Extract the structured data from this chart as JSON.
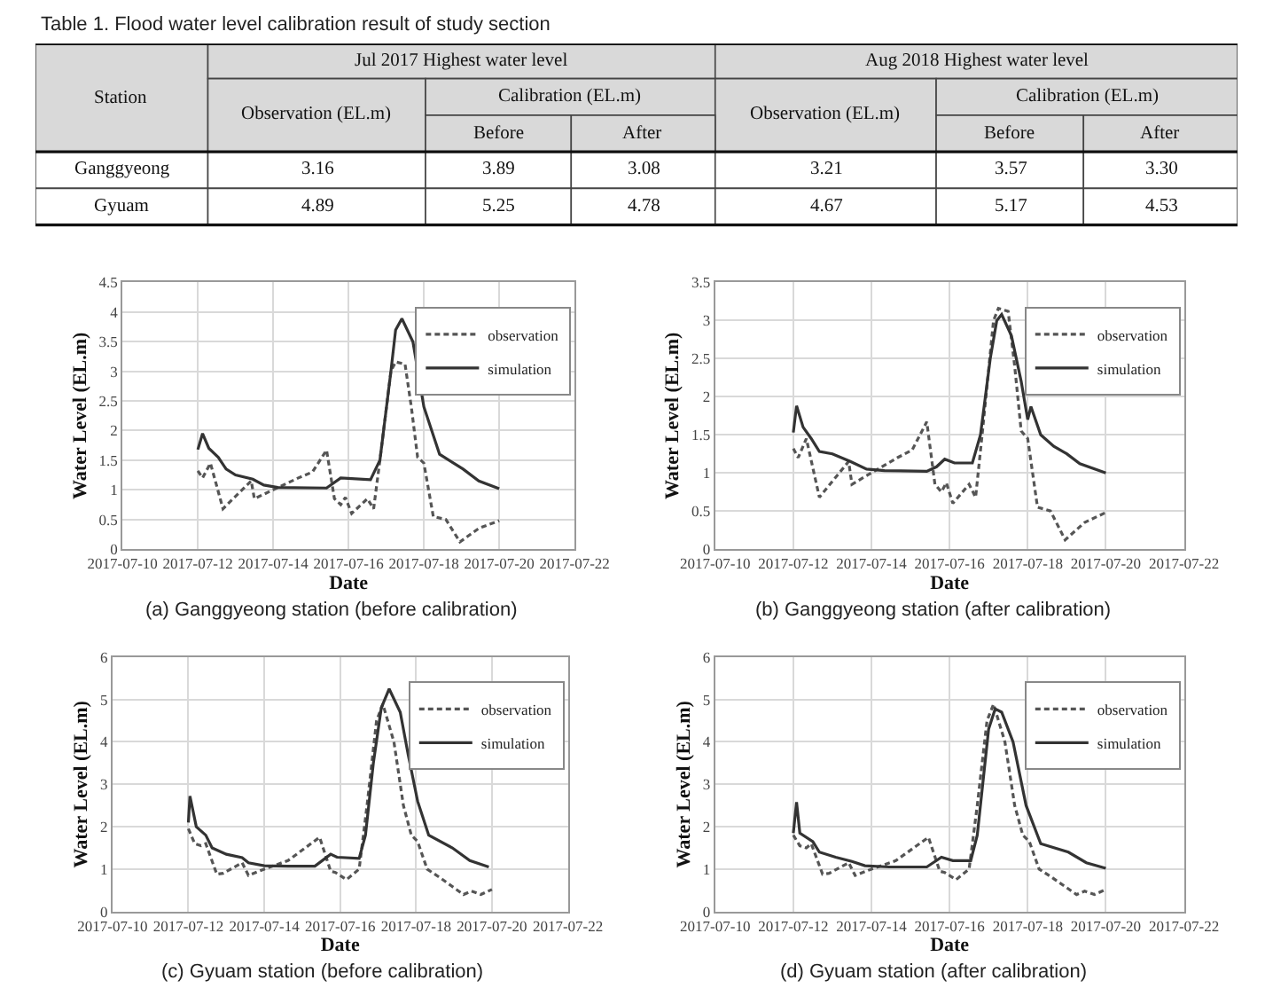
{
  "chart_data": [
    {
      "type": "other",
      "title": "Table 1. Flood water level calibration result of study section",
      "annotations": [
        "Station",
        "Jul 2017 Highest water level",
        "Aug 2018 Highest water level",
        "Observation (EL.m)",
        "Calibration (EL.m)",
        "Observation (EL.m)",
        "Calibration (EL.m)",
        "Before",
        "After",
        "Before",
        "After",
        "Ganggyeong",
        "3.16",
        "3.89",
        "3.08",
        "3.21",
        "3.57",
        "3.30",
        "Gyuam",
        "4.89",
        "5.25",
        "4.78",
        "4.67",
        "5.17",
        "4.53"
      ]
    },
    {
      "type": "line",
      "xlabel": "Date",
      "ylabel": "Water Level (EL.m)",
      "annotations": [
        "(a) Ganggyeong station (before calibration)"
      ],
      "xlim": [
        "2017-07-10",
        "2017-07-22"
      ],
      "xticks": [
        "2017-07-10",
        "2017-07-12",
        "2017-07-14",
        "2017-07-16",
        "2017-07-18",
        "2017-07-20",
        "2017-07-22"
      ],
      "ylim": [
        0,
        4.5
      ],
      "yticks": [
        0,
        0.5,
        1,
        1.5,
        2,
        2.5,
        3,
        3.5,
        4,
        4.5
      ],
      "grid": true,
      "legend": "top right",
      "series": [
        {
          "name": "observation",
          "color": "#555555",
          "line_style": "dashed",
          "x": [
            "2017-07-12T00:00",
            "2017-07-12T03:00",
            "2017-07-12T08:00",
            "2017-07-12T16:00",
            "2017-07-13T10:00",
            "2017-07-13T12:00",
            "2017-07-14T00:00",
            "2017-07-14T16:00",
            "2017-07-15T01:00",
            "2017-07-15T10:00",
            "2017-07-15T15:00",
            "2017-07-15T19:00",
            "2017-07-15T22:00",
            "2017-07-16T02:00",
            "2017-07-16T12:00",
            "2017-07-16T16:00",
            "2017-07-16T20:00",
            "2017-07-17T03:00",
            "2017-07-17T06:00",
            "2017-07-17T12:00",
            "2017-07-17T16:00",
            "2017-07-17T20:00",
            "2017-07-18T00:00",
            "2017-07-18T06:00",
            "2017-07-18T14:00",
            "2017-07-18T23:00",
            "2017-07-19T11:00",
            "2017-07-20T00:00"
          ],
          "values": [
            1.32,
            1.2,
            1.45,
            0.68,
            1.15,
            0.85,
            1.0,
            1.2,
            1.3,
            1.67,
            0.85,
            0.75,
            0.87,
            0.6,
            0.85,
            0.68,
            1.5,
            3.0,
            3.16,
            3.12,
            2.4,
            1.55,
            1.45,
            0.55,
            0.5,
            0.12,
            0.35,
            0.48
          ]
        },
        {
          "name": "simulation",
          "color": "#333333",
          "line_style": "solid",
          "x": [
            "2017-07-12T00:00",
            "2017-07-12T03:00",
            "2017-07-12T07:00",
            "2017-07-12T13:00",
            "2017-07-12T18:00",
            "2017-07-13T00:00",
            "2017-07-13T11:00",
            "2017-07-13T18:00",
            "2017-07-14T03:00",
            "2017-07-15T10:00",
            "2017-07-15T19:00",
            "2017-07-16T14:00",
            "2017-07-16T20:00",
            "2017-07-17T03:00",
            "2017-07-17T06:00",
            "2017-07-17T10:00",
            "2017-07-17T17:00",
            "2017-07-18T00:00",
            "2017-07-18T10:00",
            "2017-07-19T01:00",
            "2017-07-19T11:00",
            "2017-07-20T00:00"
          ],
          "values": [
            1.68,
            1.95,
            1.7,
            1.55,
            1.35,
            1.25,
            1.18,
            1.08,
            1.04,
            1.03,
            1.2,
            1.17,
            1.5,
            3.0,
            3.7,
            3.89,
            3.5,
            2.4,
            1.6,
            1.35,
            1.15,
            1.02
          ]
        }
      ]
    },
    {
      "type": "line",
      "xlabel": "Date",
      "ylabel": "Water Level (EL.m)",
      "annotations": [
        "(b) Ganggyeong station (after calibration)"
      ],
      "xlim": [
        "2017-07-10",
        "2017-07-22"
      ],
      "xticks": [
        "2017-07-10",
        "2017-07-12",
        "2017-07-14",
        "2017-07-16",
        "2017-07-18",
        "2017-07-20",
        "2017-07-22"
      ],
      "ylim": [
        0,
        3.5
      ],
      "yticks": [
        0,
        0.5,
        1,
        1.5,
        2,
        2.5,
        3,
        3.5
      ],
      "grid": true,
      "legend": "top right",
      "series": [
        {
          "name": "observation",
          "color": "#555555",
          "line_style": "dashed",
          "x": [
            "2017-07-12T00:00",
            "2017-07-12T03:00",
            "2017-07-12T08:00",
            "2017-07-12T16:00",
            "2017-07-13T10:00",
            "2017-07-13T12:00",
            "2017-07-14T00:00",
            "2017-07-14T16:00",
            "2017-07-15T01:00",
            "2017-07-15T10:00",
            "2017-07-15T15:00",
            "2017-07-15T19:00",
            "2017-07-15T22:00",
            "2017-07-16T02:00",
            "2017-07-16T12:00",
            "2017-07-16T16:00",
            "2017-07-16T20:00",
            "2017-07-17T03:00",
            "2017-07-17T06:00",
            "2017-07-17T12:00",
            "2017-07-17T16:00",
            "2017-07-17T20:00",
            "2017-07-18T00:00",
            "2017-07-18T06:00",
            "2017-07-18T14:00",
            "2017-07-18T23:00",
            "2017-07-19T11:00",
            "2017-07-20T00:00"
          ],
          "values": [
            1.32,
            1.2,
            1.45,
            0.68,
            1.15,
            0.85,
            1.0,
            1.2,
            1.3,
            1.67,
            0.85,
            0.75,
            0.87,
            0.6,
            0.85,
            0.68,
            1.5,
            3.0,
            3.16,
            3.12,
            2.4,
            1.55,
            1.45,
            0.55,
            0.5,
            0.12,
            0.35,
            0.48
          ]
        },
        {
          "name": "simulation",
          "color": "#333333",
          "line_style": "solid",
          "x": [
            "2017-07-12T00:00",
            "2017-07-12T02:00",
            "2017-07-12T06:00",
            "2017-07-12T11:00",
            "2017-07-12T16:00",
            "2017-07-13T00:00",
            "2017-07-13T11:00",
            "2017-07-13T21:00",
            "2017-07-14T08:00",
            "2017-07-15T10:00",
            "2017-07-15T16:00",
            "2017-07-15T21:00",
            "2017-07-16T03:00",
            "2017-07-16T14:00",
            "2017-07-16T19:00",
            "2017-07-17T01:00",
            "2017-07-17T05:00",
            "2017-07-17T08:00",
            "2017-07-17T14:00",
            "2017-07-17T20:00",
            "2017-07-18T00:00",
            "2017-07-18T02:00",
            "2017-07-18T08:00",
            "2017-07-18T16:00",
            "2017-07-19T00:00",
            "2017-07-19T08:00",
            "2017-07-20T00:00"
          ],
          "values": [
            1.53,
            1.88,
            1.6,
            1.45,
            1.28,
            1.25,
            1.15,
            1.05,
            1.03,
            1.02,
            1.08,
            1.18,
            1.13,
            1.13,
            1.5,
            2.5,
            3.0,
            3.08,
            2.8,
            2.2,
            1.7,
            1.87,
            1.5,
            1.35,
            1.25,
            1.12,
            1.0
          ]
        }
      ]
    },
    {
      "type": "line",
      "xlabel": "Date",
      "ylabel": "Water Level (EL.m)",
      "annotations": [
        "(c) Gyuam station (before calibration)"
      ],
      "xlim": [
        "2017-07-10",
        "2017-07-22"
      ],
      "xticks": [
        "2017-07-10",
        "2017-07-12",
        "2017-07-14",
        "2017-07-16",
        "2017-07-18",
        "2017-07-20",
        "2017-07-22"
      ],
      "ylim": [
        0,
        6
      ],
      "yticks": [
        0,
        1,
        2,
        3,
        4,
        5,
        6
      ],
      "grid": true,
      "legend": "top right",
      "series": [
        {
          "name": "observation",
          "color": "#555555",
          "line_style": "dashed",
          "x": [
            "2017-07-12T00:00",
            "2017-07-12T04:00",
            "2017-07-12T08:00",
            "2017-07-12T11:00",
            "2017-07-12T18:00",
            "2017-07-12T22:00",
            "2017-07-13T10:00",
            "2017-07-13T14:00",
            "2017-07-14T00:00",
            "2017-07-14T15:00",
            "2017-07-15T11:00",
            "2017-07-15T18:00",
            "2017-07-15T21:00",
            "2017-07-16T04:00",
            "2017-07-16T12:00",
            "2017-07-16T17:00",
            "2017-07-16T23:00",
            "2017-07-17T03:00",
            "2017-07-17T10:00",
            "2017-07-17T16:00",
            "2017-07-17T21:00",
            "2017-07-18T01:00",
            "2017-07-18T07:00",
            "2017-07-18T15:00",
            "2017-07-19T06:00",
            "2017-07-19T11:00",
            "2017-07-19T17:00",
            "2017-07-20T00:00"
          ],
          "values": [
            1.95,
            1.6,
            1.55,
            1.6,
            0.88,
            0.9,
            1.15,
            0.85,
            1.0,
            1.2,
            1.75,
            0.95,
            0.92,
            0.75,
            1.0,
            2.5,
            4.5,
            4.89,
            4.0,
            2.5,
            1.8,
            1.65,
            1.0,
            0.8,
            0.4,
            0.48,
            0.4,
            0.52
          ]
        },
        {
          "name": "simulation",
          "color": "#333333",
          "line_style": "solid",
          "x": [
            "2017-07-12T00:00",
            "2017-07-12T01:00",
            "2017-07-12T05:00",
            "2017-07-12T11:00",
            "2017-07-12T15:00",
            "2017-07-13T00:00",
            "2017-07-13T10:00",
            "2017-07-13T14:00",
            "2017-07-14T00:00",
            "2017-07-14T15:00",
            "2017-07-15T08:00",
            "2017-07-15T18:00",
            "2017-07-15T22:00",
            "2017-07-16T12:00",
            "2017-07-16T16:00",
            "2017-07-16T21:00",
            "2017-07-17T02:00",
            "2017-07-17T07:00",
            "2017-07-17T14:00",
            "2017-07-17T19:00",
            "2017-07-18T01:00",
            "2017-07-18T08:00",
            "2017-07-18T23:00",
            "2017-07-19T10:00",
            "2017-07-19T22:00"
          ],
          "values": [
            2.1,
            2.72,
            2.0,
            1.8,
            1.5,
            1.35,
            1.27,
            1.15,
            1.08,
            1.07,
            1.07,
            1.35,
            1.28,
            1.25,
            1.8,
            3.5,
            4.8,
            5.25,
            4.7,
            3.7,
            2.6,
            1.8,
            1.5,
            1.2,
            1.05
          ]
        }
      ]
    },
    {
      "type": "line",
      "xlabel": "Date",
      "ylabel": "Water Level (EL.m)",
      "annotations": [
        "(d) Gyuam station (after calibration)"
      ],
      "xlim": [
        "2017-07-10",
        "2017-07-22"
      ],
      "xticks": [
        "2017-07-10",
        "2017-07-12",
        "2017-07-14",
        "2017-07-16",
        "2017-07-18",
        "2017-07-20",
        "2017-07-22"
      ],
      "ylim": [
        0,
        6
      ],
      "yticks": [
        0,
        1,
        2,
        3,
        4,
        5,
        6
      ],
      "grid": true,
      "legend": "top right",
      "series": [
        {
          "name": "observation",
          "color": "#555555",
          "line_style": "dashed",
          "x": [
            "2017-07-12T00:00",
            "2017-07-12T04:00",
            "2017-07-12T08:00",
            "2017-07-12T11:00",
            "2017-07-12T18:00",
            "2017-07-12T22:00",
            "2017-07-13T10:00",
            "2017-07-13T14:00",
            "2017-07-14T00:00",
            "2017-07-14T15:00",
            "2017-07-15T11:00",
            "2017-07-15T18:00",
            "2017-07-15T21:00",
            "2017-07-16T04:00",
            "2017-07-16T12:00",
            "2017-07-16T17:00",
            "2017-07-16T23:00",
            "2017-07-17T03:00",
            "2017-07-17T10:00",
            "2017-07-17T16:00",
            "2017-07-17T21:00",
            "2017-07-18T01:00",
            "2017-07-18T07:00",
            "2017-07-18T15:00",
            "2017-07-19T06:00",
            "2017-07-19T11:00",
            "2017-07-19T17:00",
            "2017-07-20T00:00"
          ],
          "values": [
            1.8,
            1.55,
            1.5,
            1.6,
            0.88,
            0.9,
            1.15,
            0.85,
            1.0,
            1.2,
            1.75,
            0.95,
            0.92,
            0.75,
            1.0,
            2.5,
            4.5,
            4.89,
            4.0,
            2.5,
            1.8,
            1.65,
            1.0,
            0.8,
            0.4,
            0.48,
            0.4,
            0.52
          ]
        },
        {
          "name": "simulation",
          "color": "#333333",
          "line_style": "solid",
          "x": [
            "2017-07-12T00:00",
            "2017-07-12T02:00",
            "2017-07-12T04:00",
            "2017-07-12T12:00",
            "2017-07-12T16:00",
            "2017-07-13T02:00",
            "2017-07-13T12:00",
            "2017-07-13T20:00",
            "2017-07-14T11:00",
            "2017-07-15T10:00",
            "2017-07-15T19:00",
            "2017-07-16T02:00",
            "2017-07-16T13:00",
            "2017-07-16T17:00",
            "2017-07-17T00:00",
            "2017-07-17T04:00",
            "2017-07-17T08:00",
            "2017-07-17T15:00",
            "2017-07-17T23:00",
            "2017-07-18T08:00",
            "2017-07-19T01:00",
            "2017-07-19T12:00",
            "2017-07-20T00:00"
          ],
          "values": [
            1.85,
            2.58,
            1.85,
            1.65,
            1.4,
            1.28,
            1.18,
            1.08,
            1.05,
            1.05,
            1.28,
            1.2,
            1.2,
            1.8,
            4.3,
            4.78,
            4.7,
            4.0,
            2.5,
            1.6,
            1.4,
            1.15,
            1.02
          ]
        }
      ]
    }
  ]
}
